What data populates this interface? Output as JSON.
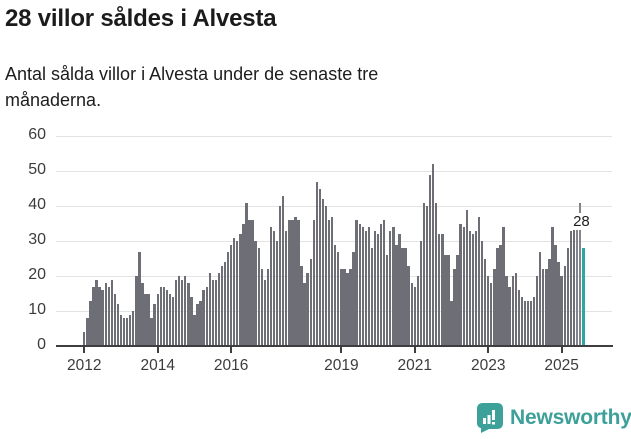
{
  "title": "28 villor såldes i Alvesta",
  "subtitle": "Antal sålda villor i Alvesta under de senaste tre månaderna.",
  "logo": {
    "text": "Newsworthy"
  },
  "colors": {
    "bar": "#6e6e76",
    "highlight": "#2ba7a4",
    "logo_teal": "#3da099",
    "gridline": "#e3e3e3",
    "axis": "#3e3e3e",
    "text": "#1b1b1b"
  },
  "chart_data": {
    "type": "bar",
    "title": "28 villor såldes i Alvesta",
    "subtitle": "Antal sålda villor i Alvesta under de senaste tre månaderna.",
    "xlabel": "",
    "ylabel": "",
    "ylim": [
      0,
      60
    ],
    "y_ticks": [
      0,
      10,
      20,
      30,
      40,
      50,
      60
    ],
    "grid": true,
    "x_start": "2012-01",
    "x_end": "2025-08",
    "x_ticks": [
      {
        "label": "2012",
        "year": 2012
      },
      {
        "label": "2014",
        "year": 2014
      },
      {
        "label": "2016",
        "year": 2016
      },
      {
        "label": "2019",
        "year": 2019
      },
      {
        "label": "2021",
        "year": 2021
      },
      {
        "label": "2023",
        "year": 2023
      },
      {
        "label": "2025",
        "year": 2025
      }
    ],
    "values": [
      4,
      8,
      13,
      17,
      19,
      17,
      16,
      18,
      17,
      19,
      15,
      12,
      9,
      8,
      8,
      9,
      10,
      20,
      27,
      18,
      15,
      15,
      8,
      12,
      15,
      17,
      17,
      16,
      15,
      14,
      19,
      20,
      19,
      20,
      18,
      14,
      9,
      12,
      13,
      16,
      17,
      21,
      19,
      19,
      21,
      23,
      24,
      27,
      29,
      31,
      30,
      32,
      35,
      41,
      36,
      36,
      30,
      28,
      22,
      19,
      22,
      34,
      33,
      30,
      40,
      43,
      33,
      36,
      36,
      37,
      36,
      23,
      18,
      21,
      25,
      36,
      47,
      45,
      42,
      40,
      36,
      37,
      29,
      27,
      22,
      22,
      21,
      22,
      27,
      36,
      35,
      34,
      33,
      34,
      28,
      33,
      32,
      35,
      36,
      26,
      33,
      34,
      29,
      32,
      28,
      28,
      23,
      18,
      17,
      20,
      30,
      41,
      40,
      49,
      52,
      41,
      32,
      32,
      26,
      26,
      13,
      22,
      26,
      35,
      34,
      39,
      33,
      32,
      33,
      37,
      30,
      25,
      20,
      18,
      22,
      28,
      29,
      34,
      20,
      17,
      20,
      21,
      16,
      14,
      13,
      13,
      13,
      14,
      20,
      27,
      22,
      22,
      25,
      34,
      29,
      24,
      20,
      23,
      28,
      33,
      35,
      38,
      41,
      28
    ],
    "dashed_indices": [
      161,
      162
    ],
    "highlight_last": true,
    "annotation": {
      "index": 163,
      "text": "28"
    },
    "legend": null
  }
}
